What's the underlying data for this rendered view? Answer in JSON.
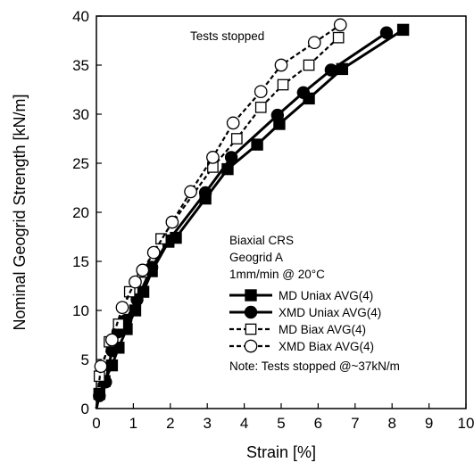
{
  "chart_data": {
    "type": "line",
    "xlabel": "Strain [%]",
    "ylabel": "Nominal Geogrid Strength [kN/m]",
    "xlim": [
      0,
      10
    ],
    "ylim": [
      0,
      40
    ],
    "xticks": [
      "0",
      "1",
      "2",
      "3",
      "4",
      "5",
      "6",
      "7",
      "8",
      "9",
      "10"
    ],
    "yticks": [
      "0",
      "5",
      "10",
      "15",
      "20",
      "25",
      "30",
      "35",
      "40"
    ],
    "grid": false,
    "legend_position": "inside-right",
    "annotation_top": "Tests stopped",
    "legend_header": [
      "Biaxial CRS",
      "Geogrid A",
      "1mm/min @ 20°C"
    ],
    "legend_note": "Note: Tests stopped @~37kN/m",
    "series": [
      {
        "name": "MD Uniax AVG(4)",
        "line": "solid",
        "marker": "square-filled",
        "points": [
          [
            0,
            0
          ],
          [
            0.08,
            1.5
          ],
          [
            0.22,
            2.8
          ],
          [
            0.42,
            4.4
          ],
          [
            0.6,
            6.2
          ],
          [
            0.82,
            8.1
          ],
          [
            1.05,
            10.0
          ],
          [
            1.27,
            11.9
          ],
          [
            1.5,
            14.0
          ],
          [
            1.95,
            17.0
          ],
          [
            2.15,
            17.4
          ],
          [
            2.95,
            21.4
          ],
          [
            3.55,
            24.4
          ],
          [
            4.35,
            26.9
          ],
          [
            4.95,
            29.0
          ],
          [
            5.75,
            31.6
          ],
          [
            6.65,
            34.6
          ],
          [
            8.3,
            38.6
          ]
        ]
      },
      {
        "name": "XMD Uniax AVG(4)",
        "line": "solid",
        "marker": "circle-filled",
        "points": [
          [
            0,
            0
          ],
          [
            0.08,
            1.3
          ],
          [
            0.25,
            2.7
          ],
          [
            0.42,
            5.9
          ],
          [
            0.58,
            7.8
          ],
          [
            0.8,
            9.0
          ],
          [
            1.1,
            11.1
          ],
          [
            1.5,
            14.4
          ],
          [
            1.95,
            17.1
          ],
          [
            2.95,
            22.0
          ],
          [
            3.65,
            25.6
          ],
          [
            4.9,
            29.9
          ],
          [
            5.6,
            32.2
          ],
          [
            6.35,
            34.5
          ],
          [
            7.85,
            38.3
          ]
        ]
      },
      {
        "name": "MD Biax AVG(4)",
        "line": "dashed",
        "marker": "square-open",
        "points": [
          [
            0,
            0
          ],
          [
            0.08,
            3.3
          ],
          [
            0.35,
            6.8
          ],
          [
            0.6,
            8.6
          ],
          [
            0.9,
            11.9
          ],
          [
            1.25,
            13.9
          ],
          [
            1.75,
            17.3
          ],
          [
            3.15,
            24.6
          ],
          [
            3.8,
            27.5
          ],
          [
            4.45,
            30.7
          ],
          [
            5.05,
            33.0
          ],
          [
            5.75,
            35.0
          ],
          [
            6.55,
            37.8
          ]
        ]
      },
      {
        "name": "XMD Biax AVG(4)",
        "line": "dashed",
        "marker": "circle-open",
        "points": [
          [
            0,
            0
          ],
          [
            0.12,
            4.3
          ],
          [
            0.42,
            7.0
          ],
          [
            0.7,
            10.3
          ],
          [
            1.05,
            12.9
          ],
          [
            1.25,
            14.1
          ],
          [
            1.55,
            15.9
          ],
          [
            2.05,
            19.0
          ],
          [
            2.55,
            22.1
          ],
          [
            3.15,
            25.6
          ],
          [
            3.7,
            29.1
          ],
          [
            4.45,
            32.3
          ],
          [
            5.0,
            35.0
          ],
          [
            5.9,
            37.3
          ],
          [
            6.6,
            39.1
          ]
        ]
      }
    ]
  }
}
